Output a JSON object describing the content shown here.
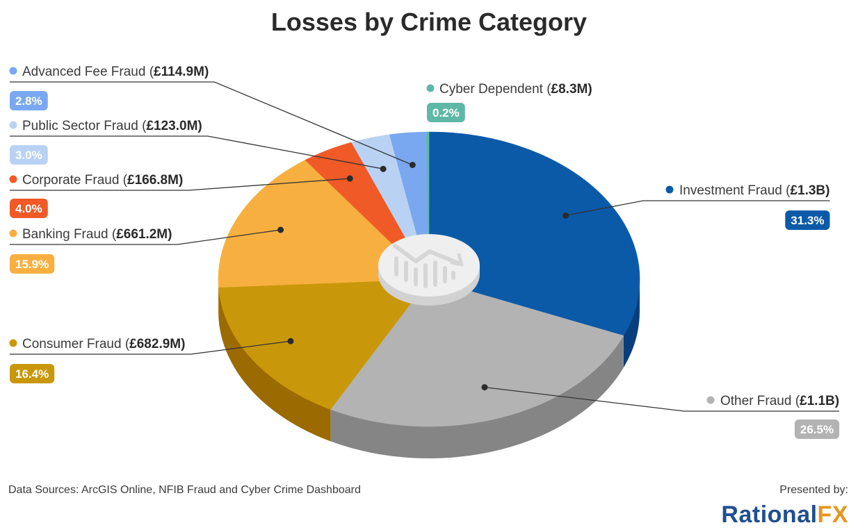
{
  "chart_data": {
    "type": "pie",
    "title": "Losses by Crime Category",
    "slices": [
      {
        "label": "Investment Fraud",
        "amount": "£1.3B",
        "percent": 31.3,
        "percent_label": "31.3%",
        "color": "#0b5aa8",
        "side_color": "#063f7c"
      },
      {
        "label": "Other Fraud",
        "amount": "£1.1B",
        "percent": 26.5,
        "percent_label": "26.5%",
        "color": "#b3b3b3",
        "side_color": "#858585"
      },
      {
        "label": "Consumer Fraud",
        "amount": "£682.9M",
        "percent": 16.4,
        "percent_label": "16.4%",
        "color": "#c9980a",
        "side_color": "#9b6a00"
      },
      {
        "label": "Banking Fraud",
        "amount": "£661.2M",
        "percent": 15.9,
        "percent_label": "15.9%",
        "color": "#f7b040",
        "side_color": "#c98620"
      },
      {
        "label": "Corporate Fraud",
        "amount": "£166.8M",
        "percent": 4.0,
        "percent_label": "4.0%",
        "color": "#ef5a26",
        "side_color": "#b8401a"
      },
      {
        "label": "Public Sector Fraud",
        "amount": "£123.0M",
        "percent": 3.0,
        "percent_label": "3.0%",
        "color": "#b9d2f3",
        "side_color": "#8ea9cf"
      },
      {
        "label": "Advanced Fee Fraud",
        "amount": "£114.9M",
        "percent": 2.8,
        "percent_label": "2.8%",
        "color": "#7aa8f0",
        "side_color": "#5a84c7"
      },
      {
        "label": "Cyber Dependent",
        "amount": "£8.3M",
        "percent": 0.2,
        "percent_label": "0.2%",
        "color": "#5fb8a6",
        "side_color": "#3f8f80"
      }
    ],
    "legend": "callouts"
  },
  "center_icon": "declining-chart-icon",
  "footer": {
    "sources": "Data Sources: ArcGIS Online, NFIB Fraud and Cyber Crime Dashboard",
    "presented_by": "Presented by:",
    "brand_part1": "Rational",
    "brand_part2": "FX"
  }
}
